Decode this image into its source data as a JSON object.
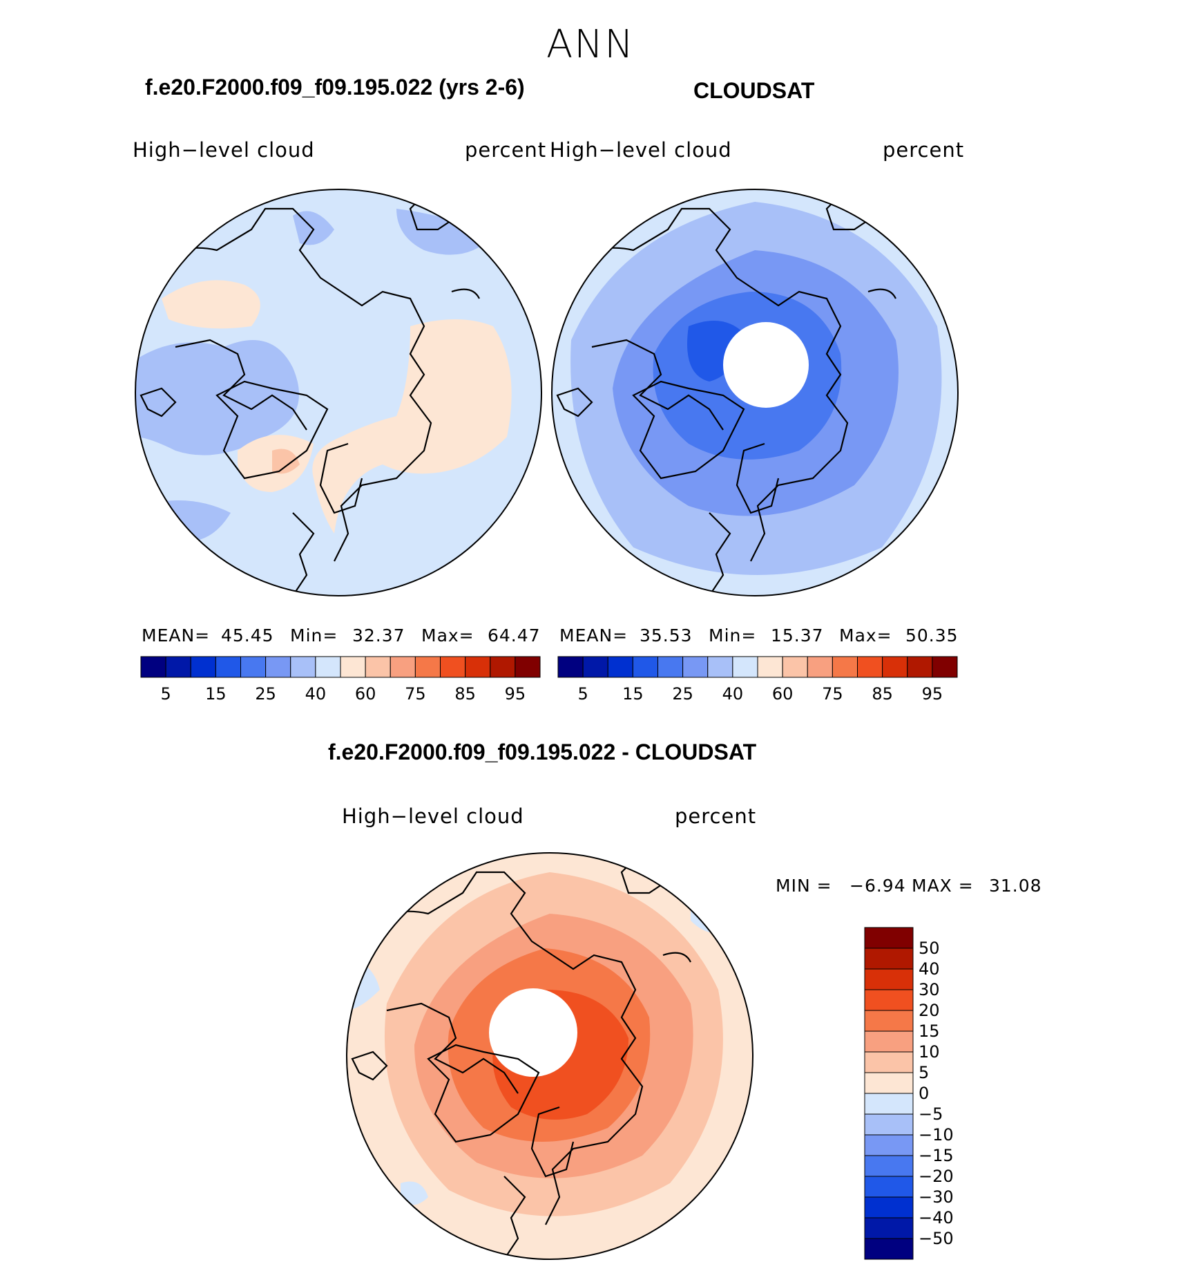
{
  "title": "ANN",
  "panels": [
    {
      "id": "model",
      "case_title": "f.e20.F2000.f09_f09.195.022 (yrs 2-6)",
      "variable": "High−level  cloud",
      "units": "percent",
      "stats": {
        "mean_label": "MEAN=",
        "mean": "45.45",
        "min_label": "Min=",
        "min": "32.37",
        "max_label": "Max=",
        "max": "64.47"
      }
    },
    {
      "id": "obs",
      "case_title": "CLOUDSAT",
      "variable": "High−level  cloud",
      "units": "percent",
      "stats": {
        "mean_label": "MEAN=",
        "mean": "35.53",
        "min_label": "Min=",
        "min": "15.37",
        "max_label": "Max=",
        "max": "50.35"
      }
    }
  ],
  "colorbar": {
    "colors": [
      "#000080",
      "#0018a8",
      "#0030d0",
      "#2058e8",
      "#4878f0",
      "#7898f4",
      "#a8c0f8",
      "#d4e6fc",
      "#fde6d4",
      "#fbc4a8",
      "#f8a080",
      "#f57848",
      "#f05020",
      "#d83008",
      "#b01800",
      "#800000"
    ],
    "tick_labels": [
      "5",
      "15",
      "25",
      "40",
      "60",
      "75",
      "85",
      "95"
    ]
  },
  "diff": {
    "title": "f.e20.F2000.f09_f09.195.022 - CLOUDSAT",
    "variable": "High−level  cloud",
    "units": "percent",
    "min_label": "MIN =",
    "min": "−6.94",
    "max_label": "MAX =",
    "max": "31.08",
    "colorbar_colors": [
      "#800000",
      "#b01800",
      "#d83008",
      "#f05020",
      "#f57848",
      "#f8a080",
      "#fbc4a8",
      "#fde6d4",
      "#d4e6fc",
      "#a8c0f8",
      "#7898f4",
      "#4878f0",
      "#2058e8",
      "#0030d0",
      "#0018a8",
      "#000080"
    ],
    "colorbar_labels": [
      "50",
      "40",
      "30",
      "20",
      "15",
      "10",
      "5",
      "0",
      "−5",
      "−10",
      "−15",
      "−20",
      "−30",
      "−40",
      "−50"
    ]
  }
}
